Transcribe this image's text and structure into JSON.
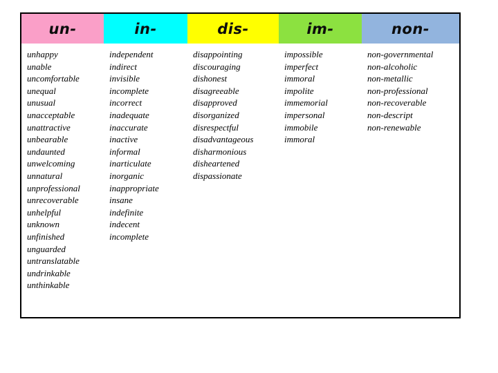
{
  "table": {
    "columns": [
      {
        "prefix": "un-",
        "color": "#FA9FC8",
        "words": [
          "unhappy",
          "unable",
          "uncomfortable",
          "unequal",
          "unusual",
          "unacceptable",
          "unattractive",
          "unbearable",
          "undaunted",
          "unwelcoming",
          "unnatural",
          "unprofessional",
          "unrecoverable",
          "unhelpful",
          "unknown",
          "unfinished",
          "unguarded",
          "untranslatable",
          "undrinkable",
          "unthinkable"
        ]
      },
      {
        "prefix": "in-",
        "color": "#00FFFF",
        "words": [
          "independent",
          "indirect",
          "invisible",
          "incomplete",
          "incorrect",
          "inadequate",
          "inaccurate",
          "inactive",
          "informal",
          "inarticulate",
          "inorganic",
          "inappropriate",
          "insane",
          "indefinite",
          "indecent",
          "incomplete"
        ]
      },
      {
        "prefix": "dis-",
        "color": "#FFFF00",
        "words": [
          "disappointing",
          "discouraging",
          "dishonest",
          "disagreeable",
          "disapproved",
          "disorganized",
          "disrespectful",
          "disadvantageous",
          "disharmonious",
          "disheartened",
          "dispassionate"
        ]
      },
      {
        "prefix": "im-",
        "color": "#8CE140",
        "words": [
          "impossible",
          "imperfect",
          "immoral",
          "impolite",
          "immemorial",
          "impersonal",
          "immobile",
          "immoral"
        ]
      },
      {
        "prefix": "non-",
        "color": "#92B4DE",
        "words": [
          "non-governmental",
          "non-alcoholic",
          "non-metallic",
          "non-professional",
          "non-recoverable",
          "non-descript",
          "non-renewable"
        ]
      }
    ]
  }
}
